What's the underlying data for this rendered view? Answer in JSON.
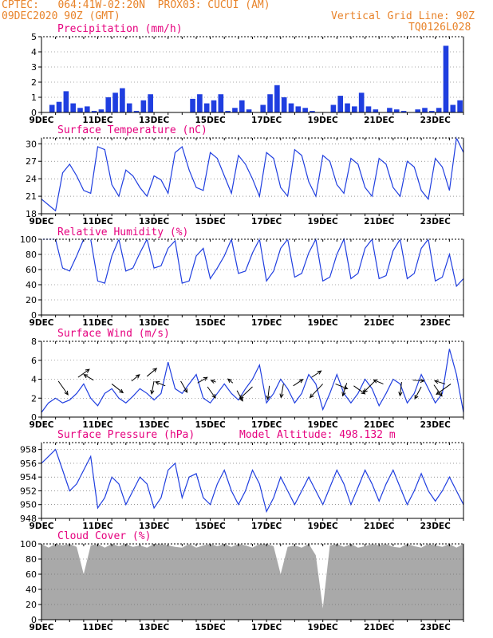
{
  "header": {
    "line1": "CPTEC:   064:41W-02:20N  PROX03: CUCUI (AM)",
    "line2": "09DEC2020 90Z (GMT)",
    "grid_note": "Vertical Grid Line: 90Z",
    "code": "TQ0126L028"
  },
  "colors": {
    "header": "#e8832a",
    "title": "#e5007e",
    "series": "#1f3ee0",
    "cloud": "#a9a9a9",
    "axis": "#000000"
  },
  "x_ticks": [
    "9DEC",
    "11DEC",
    "13DEC",
    "15DEC",
    "17DEC",
    "19DEC",
    "21DEC",
    "23DEC"
  ],
  "x_tick_days": [
    9,
    11,
    13,
    15,
    17,
    19,
    21,
    23
  ],
  "x_range": [
    9,
    24
  ],
  "chart_data": [
    {
      "type": "bar",
      "title": "Precipitation (mm/h)",
      "ylim": [
        0,
        5
      ],
      "yticks": [
        0,
        1,
        2,
        3,
        4,
        5
      ],
      "x": [
        9.375,
        9.625,
        9.875,
        10.125,
        10.375,
        10.625,
        10.875,
        11.125,
        11.375,
        11.625,
        11.875,
        12.125,
        12.375,
        12.625,
        12.875,
        13.125,
        13.375,
        13.625,
        13.875,
        14.125,
        14.375,
        14.625,
        14.875,
        15.125,
        15.375,
        15.625,
        15.875,
        16.125,
        16.375,
        16.625,
        16.875,
        17.125,
        17.375,
        17.625,
        17.875,
        18.125,
        18.375,
        18.625,
        18.875,
        19.125,
        19.375,
        19.625,
        19.875,
        20.125,
        20.375,
        20.625,
        20.875,
        21.125,
        21.375,
        21.625,
        21.875,
        22.125,
        22.375,
        22.625,
        22.875,
        23.125,
        23.375,
        23.625,
        23.875
      ],
      "values": [
        0.5,
        0.7,
        1.4,
        0.6,
        0.3,
        0.4,
        0.1,
        0.2,
        1.0,
        1.3,
        1.6,
        0.6,
        0.1,
        0.8,
        1.2,
        0.0,
        0.0,
        0.0,
        0.0,
        0.0,
        0.9,
        1.2,
        0.6,
        0.8,
        1.2,
        0.1,
        0.3,
        0.8,
        0.2,
        0.0,
        0.5,
        1.2,
        1.8,
        1.0,
        0.6,
        0.4,
        0.3,
        0.1,
        0.0,
        0.0,
        0.5,
        1.1,
        0.6,
        0.4,
        1.3,
        0.4,
        0.2,
        0.0,
        0.3,
        0.2,
        0.1,
        0.0,
        0.2,
        0.3,
        0.1,
        0.3,
        4.4,
        0.5,
        0.8
      ]
    },
    {
      "type": "line",
      "title": "Surface Temperature (nC)",
      "ylim": [
        18,
        31
      ],
      "yticks": [
        18,
        21,
        24,
        27,
        30
      ],
      "x": [
        9.0,
        9.25,
        9.5,
        9.75,
        10.0,
        10.25,
        10.5,
        10.75,
        11.0,
        11.25,
        11.5,
        11.75,
        12.0,
        12.25,
        12.5,
        12.75,
        13.0,
        13.25,
        13.5,
        13.75,
        14.0,
        14.25,
        14.5,
        14.75,
        15.0,
        15.25,
        15.5,
        15.75,
        16.0,
        16.25,
        16.5,
        16.75,
        17.0,
        17.25,
        17.5,
        17.75,
        18.0,
        18.25,
        18.5,
        18.75,
        19.0,
        19.25,
        19.5,
        19.75,
        20.0,
        20.25,
        20.5,
        20.75,
        21.0,
        21.25,
        21.5,
        21.75,
        22.0,
        22.25,
        22.5,
        22.75,
        23.0,
        23.25,
        23.5,
        23.75,
        24.0
      ],
      "values": [
        20.5,
        19.5,
        18.5,
        25.0,
        26.5,
        24.5,
        22.0,
        21.5,
        29.5,
        29.0,
        23.0,
        21.0,
        25.5,
        24.5,
        22.5,
        21.0,
        24.5,
        23.8,
        21.5,
        28.5,
        29.5,
        25.5,
        22.5,
        22.0,
        28.5,
        27.5,
        24.5,
        21.5,
        28.0,
        26.5,
        24.0,
        21.0,
        28.5,
        27.5,
        22.5,
        21.0,
        29.0,
        28.0,
        23.5,
        21.0,
        28.0,
        27.0,
        23.0,
        21.5,
        27.5,
        26.5,
        22.5,
        21.0,
        27.5,
        26.5,
        22.5,
        21.0,
        27.0,
        26.0,
        22.0,
        20.5,
        27.5,
        26.0,
        22.0,
        31.0,
        28.5
      ]
    },
    {
      "type": "line",
      "title": "Relative Humidity (%)",
      "ylim": [
        0,
        100
      ],
      "yticks": [
        0,
        20,
        40,
        60,
        80,
        100
      ],
      "x": [
        9.0,
        9.25,
        9.5,
        9.75,
        10.0,
        10.25,
        10.5,
        10.75,
        11.0,
        11.25,
        11.5,
        11.75,
        12.0,
        12.25,
        12.5,
        12.75,
        13.0,
        13.25,
        13.5,
        13.75,
        14.0,
        14.25,
        14.5,
        14.75,
        15.0,
        15.25,
        15.5,
        15.75,
        16.0,
        16.25,
        16.5,
        16.75,
        17.0,
        17.25,
        17.5,
        17.75,
        18.0,
        18.25,
        18.5,
        18.75,
        19.0,
        19.25,
        19.5,
        19.75,
        20.0,
        20.25,
        20.5,
        20.75,
        21.0,
        21.25,
        21.5,
        21.75,
        22.0,
        22.25,
        22.5,
        22.75,
        23.0,
        23.25,
        23.5,
        23.75,
        24.0
      ],
      "values": [
        100,
        100,
        100,
        62,
        58,
        78,
        100,
        100,
        45,
        42,
        78,
        100,
        58,
        62,
        82,
        100,
        62,
        65,
        88,
        98,
        42,
        45,
        78,
        88,
        48,
        62,
        78,
        100,
        55,
        58,
        82,
        100,
        45,
        58,
        88,
        100,
        50,
        55,
        82,
        100,
        45,
        50,
        80,
        100,
        48,
        55,
        88,
        100,
        48,
        52,
        85,
        100,
        48,
        55,
        88,
        100,
        45,
        50,
        80,
        38,
        48
      ]
    },
    {
      "type": "line",
      "title": "Surface Wind (m/s)",
      "ylim": [
        0,
        8
      ],
      "yticks": [
        0,
        2,
        4,
        6,
        8
      ],
      "x": [
        9.0,
        9.25,
        9.5,
        9.75,
        10.0,
        10.25,
        10.5,
        10.75,
        11.0,
        11.25,
        11.5,
        11.75,
        12.0,
        12.25,
        12.5,
        12.75,
        13.0,
        13.25,
        13.5,
        13.75,
        14.0,
        14.25,
        14.5,
        14.75,
        15.0,
        15.25,
        15.5,
        15.75,
        16.0,
        16.25,
        16.5,
        16.75,
        17.0,
        17.25,
        17.5,
        17.75,
        18.0,
        18.25,
        18.5,
        18.75,
        19.0,
        19.25,
        19.5,
        19.75,
        20.0,
        20.25,
        20.5,
        20.75,
        21.0,
        21.25,
        21.5,
        21.75,
        22.0,
        22.25,
        22.5,
        22.75,
        23.0,
        23.25,
        23.5,
        23.75,
        24.0
      ],
      "values": [
        0.5,
        1.5,
        2.0,
        1.5,
        1.8,
        2.5,
        3.5,
        2.0,
        1.2,
        2.5,
        3.0,
        2.0,
        1.5,
        2.2,
        3.0,
        2.5,
        1.8,
        2.5,
        5.8,
        3.0,
        2.5,
        3.5,
        4.5,
        2.0,
        1.5,
        2.5,
        3.5,
        2.5,
        1.8,
        3.0,
        4.0,
        5.5,
        1.5,
        2.5,
        4.0,
        3.0,
        1.5,
        2.5,
        4.5,
        3.5,
        0.8,
        2.5,
        4.5,
        2.5,
        1.5,
        2.5,
        4.0,
        3.0,
        1.2,
        2.5,
        4.0,
        3.5,
        1.5,
        2.5,
        4.5,
        3.0,
        1.5,
        2.5,
        7.2,
        4.5,
        0.5
      ],
      "arrows": [
        {
          "x": 9.6,
          "y": 3.8,
          "dx": 12,
          "dy": 17
        },
        {
          "x": 10.3,
          "y": 4.2,
          "dx": 14,
          "dy": -10
        },
        {
          "x": 10.85,
          "y": 3.9,
          "dx": -12,
          "dy": -7
        },
        {
          "x": 11.5,
          "y": 3.5,
          "dx": 14,
          "dy": 11
        },
        {
          "x": 12.2,
          "y": 3.8,
          "dx": 10,
          "dy": -8
        },
        {
          "x": 12.75,
          "y": 4.3,
          "dx": 12,
          "dy": -10
        },
        {
          "x": 13.0,
          "y": 3.8,
          "dx": -3,
          "dy": 16
        },
        {
          "x": 13.4,
          "y": 3.3,
          "dx": -12,
          "dy": -5
        },
        {
          "x": 13.95,
          "y": 3.8,
          "dx": 8,
          "dy": 14
        },
        {
          "x": 14.55,
          "y": 3.6,
          "dx": 12,
          "dy": -7
        },
        {
          "x": 14.9,
          "y": 3.2,
          "dx": 10,
          "dy": 14
        },
        {
          "x": 15.2,
          "y": 3.7,
          "dx": -6,
          "dy": -2
        },
        {
          "x": 15.8,
          "y": 3.6,
          "dx": -6,
          "dy": -5
        },
        {
          "x": 15.95,
          "y": 2.8,
          "dx": 7,
          "dy": 13
        },
        {
          "x": 16.5,
          "y": 3.2,
          "dx": -16,
          "dy": 15
        },
        {
          "x": 17.1,
          "y": 3.3,
          "dx": -2,
          "dy": 17
        },
        {
          "x": 17.6,
          "y": 3.5,
          "dx": -3,
          "dy": 17
        },
        {
          "x": 17.95,
          "y": 3.3,
          "dx": 12,
          "dy": -8
        },
        {
          "x": 18.6,
          "y": 4.2,
          "dx": 12,
          "dy": -8
        },
        {
          "x": 19.0,
          "y": 3.5,
          "dx": -16,
          "dy": 17
        },
        {
          "x": 19.45,
          "y": 3.5,
          "dx": 15,
          "dy": 6
        },
        {
          "x": 19.85,
          "y": 3.6,
          "dx": -5,
          "dy": 16
        },
        {
          "x": 20.1,
          "y": 3.3,
          "dx": 14,
          "dy": 10
        },
        {
          "x": 20.85,
          "y": 3.8,
          "dx": -14,
          "dy": 14
        },
        {
          "x": 21.15,
          "y": 3.5,
          "dx": -12,
          "dy": -5
        },
        {
          "x": 21.8,
          "y": 3.7,
          "dx": -2,
          "dy": 17
        },
        {
          "x": 22.2,
          "y": 3.9,
          "dx": 14,
          "dy": 1
        },
        {
          "x": 22.5,
          "y": 3.2,
          "dx": -8,
          "dy": 15
        },
        {
          "x": 22.95,
          "y": 3.4,
          "dx": 10,
          "dy": 14
        },
        {
          "x": 23.35,
          "y": 3.5,
          "dx": -13,
          "dy": -4
        },
        {
          "x": 23.55,
          "y": 3.5,
          "dx": -18,
          "dy": 13
        }
      ]
    },
    {
      "type": "line",
      "title": "Surface Pressure (hPa)",
      "annotation": "Model Altitude: 498.132 m",
      "ylim": [
        948,
        959
      ],
      "yticks": [
        948,
        950,
        952,
        954,
        956,
        958
      ],
      "x": [
        9.0,
        9.25,
        9.5,
        9.75,
        10.0,
        10.25,
        10.5,
        10.75,
        11.0,
        11.25,
        11.5,
        11.75,
        12.0,
        12.25,
        12.5,
        12.75,
        13.0,
        13.25,
        13.5,
        13.75,
        14.0,
        14.25,
        14.5,
        14.75,
        15.0,
        15.25,
        15.5,
        15.75,
        16.0,
        16.25,
        16.5,
        16.75,
        17.0,
        17.25,
        17.5,
        17.75,
        18.0,
        18.25,
        18.5,
        18.75,
        19.0,
        19.25,
        19.5,
        19.75,
        20.0,
        20.25,
        20.5,
        20.75,
        21.0,
        21.25,
        21.5,
        21.75,
        22.0,
        22.25,
        22.5,
        22.75,
        23.0,
        23.25,
        23.5,
        23.75,
        24.0
      ],
      "values": [
        956,
        957,
        958,
        955,
        952,
        953,
        955,
        957,
        949.5,
        951,
        954,
        953,
        950,
        952,
        954,
        953,
        949.5,
        951,
        955,
        956,
        951,
        954,
        954.5,
        951,
        950,
        953,
        955,
        952,
        950,
        952,
        955,
        953,
        949,
        951,
        954,
        952,
        950,
        952,
        954,
        952,
        950,
        952.5,
        955,
        953,
        950,
        952.5,
        955,
        953,
        950.5,
        953,
        955,
        952.5,
        950,
        952,
        954.5,
        952,
        950.5,
        952,
        954,
        952,
        950
      ]
    },
    {
      "type": "area",
      "title": "Cloud Cover (%)",
      "ylim": [
        0,
        100
      ],
      "yticks": [
        0,
        20,
        40,
        60,
        80,
        100
      ],
      "x": [
        9.0,
        9.25,
        9.5,
        9.75,
        10.0,
        10.25,
        10.5,
        10.75,
        11.0,
        11.25,
        11.5,
        11.75,
        12.0,
        12.25,
        12.5,
        12.75,
        13.0,
        13.25,
        13.5,
        13.75,
        14.0,
        14.25,
        14.5,
        14.75,
        15.0,
        15.25,
        15.5,
        15.75,
        16.0,
        16.25,
        16.5,
        16.75,
        17.0,
        17.25,
        17.5,
        17.75,
        18.0,
        18.25,
        18.5,
        18.75,
        19.0,
        19.25,
        19.5,
        19.75,
        20.0,
        20.25,
        20.5,
        20.75,
        21.0,
        21.25,
        21.5,
        21.75,
        22.0,
        22.25,
        22.5,
        22.75,
        23.0,
        23.25,
        23.5,
        23.75,
        24.0
      ],
      "values": [
        100,
        95,
        100,
        98,
        100,
        96,
        60,
        98,
        100,
        95,
        100,
        97,
        100,
        96,
        98,
        95,
        100,
        100,
        98,
        96,
        95,
        100,
        95,
        98,
        100,
        97,
        100,
        96,
        100,
        98,
        95,
        100,
        100,
        97,
        60,
        96,
        98,
        95,
        100,
        85,
        15,
        98,
        100,
        96,
        100,
        95,
        97,
        100,
        98,
        100,
        96,
        95,
        100,
        97,
        95,
        100,
        98,
        96,
        100,
        95,
        100
      ]
    }
  ]
}
